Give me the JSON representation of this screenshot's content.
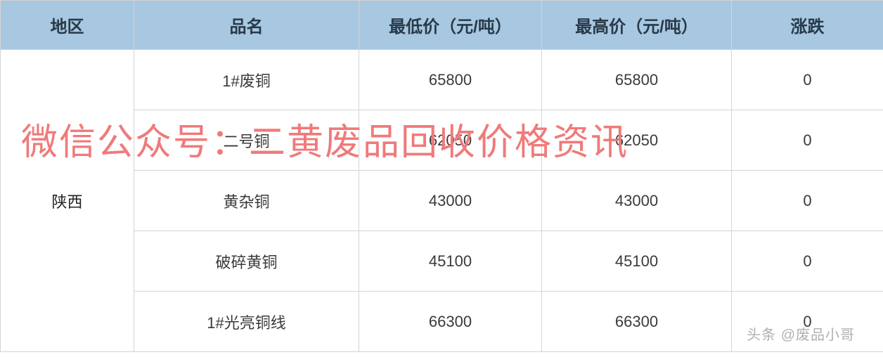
{
  "table": {
    "header_bg": "#a8c7e0",
    "header_color": "#273a4a",
    "border_color": "#d4d4d4",
    "cell_bg": "#ffffff",
    "text_color": "#3a3a3a",
    "region_label": "陕西",
    "columns": [
      {
        "key": "region",
        "label": "地区"
      },
      {
        "key": "name",
        "label": "品名"
      },
      {
        "key": "low",
        "label": "最低价（元/吨）"
      },
      {
        "key": "high",
        "label": "最高价（元/吨）"
      },
      {
        "key": "change",
        "label": "涨跌"
      }
    ],
    "rows": [
      {
        "name": "1#废铜",
        "low": "65800",
        "high": "65800",
        "change": "0"
      },
      {
        "name": "二号铜",
        "low": "62050",
        "high": "62050",
        "change": "0"
      },
      {
        "name": "黄杂铜",
        "low": "43000",
        "high": "43000",
        "change": "0"
      },
      {
        "name": "破碎黄铜",
        "low": "45100",
        "high": "45100",
        "change": "0"
      },
      {
        "name": "1#光亮铜线",
        "low": "66300",
        "high": "66300",
        "change": "0"
      }
    ]
  },
  "watermark": {
    "main_text": "微信公众号：二黄废品回收价格资讯",
    "main_color": "#f07a7a",
    "main_fontsize": 52,
    "sub_text": "头条 @废品小哥",
    "sub_color": "#b0b0b0",
    "sub_fontsize": 20
  }
}
